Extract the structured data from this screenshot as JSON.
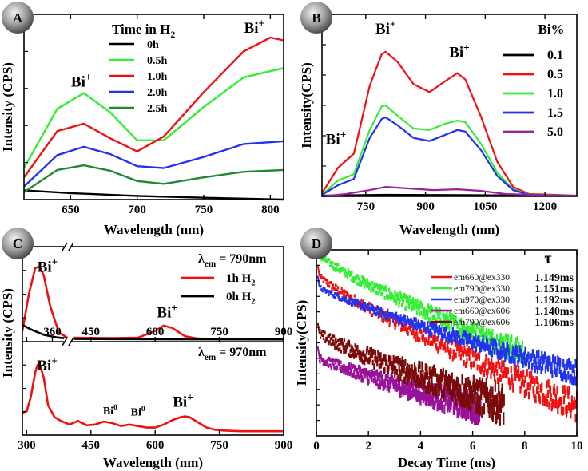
{
  "figure": {
    "panel_count": 4
  },
  "chart_data": [
    {
      "panel": "A",
      "type": "line",
      "xlabel": "Wavelength (nm)",
      "ylabel": "Intensity (CPS)",
      "xlim": [
        615,
        810
      ],
      "ylim": [
        0,
        1.0
      ],
      "xticks": [
        650,
        700,
        750,
        800
      ],
      "show_y_tick_labels": false,
      "legend_title": "Time in H2",
      "legend_position": "top-center",
      "series": [
        {
          "name": "0h",
          "color": "#000000",
          "x": [
            615,
            650,
            700,
            750,
            810
          ],
          "y": [
            0.05,
            0.035,
            0.02,
            0.01,
            0.0
          ]
        },
        {
          "name": "0.5h",
          "color": "#33ee33",
          "x": [
            615,
            640,
            660,
            680,
            700,
            720,
            750,
            780,
            810
          ],
          "y": [
            0.17,
            0.49,
            0.575,
            0.47,
            0.32,
            0.32,
            0.5,
            0.66,
            0.71
          ]
        },
        {
          "name": "1.0h",
          "color": "#ee1111",
          "x": [
            615,
            640,
            660,
            680,
            700,
            720,
            750,
            780,
            800,
            810
          ],
          "y": [
            0.12,
            0.37,
            0.41,
            0.33,
            0.26,
            0.34,
            0.58,
            0.8,
            0.875,
            0.86
          ]
        },
        {
          "name": "2.0h",
          "color": "#2233ee",
          "x": [
            615,
            640,
            660,
            680,
            700,
            720,
            750,
            780,
            810
          ],
          "y": [
            0.07,
            0.24,
            0.285,
            0.245,
            0.18,
            0.17,
            0.23,
            0.3,
            0.315
          ]
        },
        {
          "name": "2.5h",
          "color": "#228833",
          "x": [
            615,
            640,
            660,
            680,
            700,
            720,
            750,
            780,
            810
          ],
          "y": [
            0.04,
            0.16,
            0.185,
            0.155,
            0.1,
            0.085,
            0.12,
            0.15,
            0.16
          ]
        }
      ],
      "annotations": [
        {
          "text": "Bi",
          "sup": "+",
          "x": 658,
          "y": 0.61
        },
        {
          "text": "Bi",
          "sup": "+",
          "x": 788,
          "y": 0.9
        }
      ]
    },
    {
      "panel": "B",
      "type": "line",
      "xlabel": "Wavelength (nm)",
      "ylabel": "Intensity(CPS)",
      "xlim": [
        640,
        1280
      ],
      "ylim": [
        0,
        1.0
      ],
      "xticks": [
        750,
        900,
        1050,
        1200
      ],
      "show_y_tick_labels": false,
      "legend_title": "Bi%",
      "legend_position": "top-right",
      "series": [
        {
          "name": "0.1",
          "color": "#000000",
          "x": [
            640,
            800,
            1000,
            1280
          ],
          "y": [
            0.005,
            0.01,
            0.008,
            0.004
          ]
        },
        {
          "name": "0.5",
          "color": "#ee1111",
          "x": [
            640,
            680,
            720,
            760,
            790,
            800,
            830,
            870,
            910,
            950,
            980,
            1000,
            1040,
            1080,
            1120,
            1160,
            1280
          ],
          "y": [
            0.02,
            0.18,
            0.27,
            0.7,
            0.9,
            0.915,
            0.85,
            0.71,
            0.66,
            0.73,
            0.78,
            0.74,
            0.5,
            0.22,
            0.06,
            0.015,
            0.005
          ]
        },
        {
          "name": "1.0",
          "color": "#33ee33",
          "x": [
            640,
            680,
            720,
            760,
            790,
            800,
            830,
            870,
            910,
            950,
            980,
            1000,
            1040,
            1080,
            1120,
            1160,
            1280
          ],
          "y": [
            0.01,
            0.1,
            0.14,
            0.42,
            0.57,
            0.575,
            0.51,
            0.43,
            0.42,
            0.46,
            0.48,
            0.47,
            0.33,
            0.15,
            0.045,
            0.012,
            0.004
          ]
        },
        {
          "name": "1.5",
          "color": "#2233ee",
          "x": [
            640,
            680,
            720,
            760,
            790,
            800,
            830,
            870,
            910,
            950,
            980,
            1000,
            1040,
            1080,
            1120,
            1160,
            1280
          ],
          "y": [
            0.01,
            0.07,
            0.11,
            0.37,
            0.49,
            0.5,
            0.45,
            0.37,
            0.35,
            0.39,
            0.42,
            0.41,
            0.29,
            0.13,
            0.04,
            0.01,
            0.003
          ]
        },
        {
          "name": "5.0",
          "color": "#992299",
          "x": [
            640,
            700,
            760,
            800,
            860,
            920,
            980,
            1040,
            1100,
            1280
          ],
          "y": [
            0.0,
            0.015,
            0.04,
            0.06,
            0.05,
            0.04,
            0.045,
            0.035,
            0.015,
            0.003
          ]
        }
      ],
      "annotations": [
        {
          "text": "Bi",
          "sup": "+",
          "x": 675,
          "y": 0.3
        },
        {
          "text": "Bi",
          "sup": "+",
          "x": 800,
          "y": 1.0
        },
        {
          "text": "Bi",
          "sup": "+",
          "x": 985,
          "y": 0.85
        }
      ]
    },
    {
      "panel": "C",
      "type": "line",
      "subplots": [
        {
          "position": "top",
          "xlim": [
            290,
            900
          ],
          "ylim": [
            0,
            1.0
          ],
          "axis_break_at": 400,
          "legend_title": "λ",
          "legend_title_sub": "em",
          "legend_title_value": " = 790nm",
          "legend_position": "top-right",
          "series": [
            {
              "name": "1h H",
              "name_sub": "2",
              "color": "#ee1111",
              "x": [
                290,
                305,
                320,
                330,
                340,
                355,
                375,
                395
              ],
              "y": [
                0.12,
                0.6,
                0.95,
                0.97,
                0.85,
                0.45,
                0.1,
                0.03
              ]
            },
            {
              "name": "1h H",
              "name_sub": "2",
              "color": "#ee1111",
              "x": [
                410,
                450,
                500,
                560,
                600,
                620,
                640,
                670,
                700,
                750,
                900
              ],
              "y": [
                0.03,
                0.028,
                0.025,
                0.03,
                0.12,
                0.19,
                0.16,
                0.05,
                0.02,
                0.012,
                0.01
              ]
            },
            {
              "name": "0h H",
              "name_sub": "2",
              "color": "#000000",
              "x": [
                290,
                310,
                340,
                370,
                395
              ],
              "y": [
                0.2,
                0.14,
                0.07,
                0.035,
                0.02
              ]
            },
            {
              "name": "0h H",
              "name_sub": "2",
              "color": "#000000",
              "x": [
                410,
                500,
                600,
                700,
                900
              ],
              "y": [
                0.015,
                0.013,
                0.012,
                0.01,
                0.008
              ]
            }
          ],
          "annotations": [
            {
              "text": "Bi",
              "sup": "+",
              "x": 330,
              "y": 1.05
            },
            {
              "text": "Bi",
              "sup": "+",
              "x": 628,
              "y": 0.3
            }
          ]
        },
        {
          "position": "bottom",
          "xlim": [
            290,
            900
          ],
          "ylim": [
            0,
            1.0
          ],
          "xlabel": "Wavelength (nm)",
          "xticks": [
            300,
            450,
            600,
            750,
            900
          ],
          "label_prefix": "λ",
          "label_sub": "em",
          "label_value": " = 970nm",
          "series": [
            {
              "name": "970nm",
              "color": "#ee1111",
              "x": [
                290,
                300,
                310,
                320,
                325,
                330,
                340,
                350,
                365,
                380,
                400,
                420,
                440,
                460,
                480,
                500,
                520,
                540,
                560,
                580,
                600,
                620,
                640,
                660,
                670,
                680,
                700,
                720,
                740,
                760,
                800,
                850,
                900
              ],
              "y": [
                0.28,
                0.3,
                0.5,
                0.82,
                0.92,
                0.94,
                0.75,
                0.38,
                0.22,
                0.17,
                0.12,
                0.17,
                0.11,
                0.12,
                0.16,
                0.14,
                0.1,
                0.12,
                0.1,
                0.08,
                0.08,
                0.12,
                0.18,
                0.22,
                0.23,
                0.22,
                0.15,
                0.08,
                0.05,
                0.04,
                0.03,
                0.03,
                0.03
              ]
            }
          ],
          "annotations": [
            {
              "text": "Bi",
              "sup": "+",
              "x": 333,
              "y": 1.02
            },
            {
              "text": "Bi",
              "sup": "0",
              "x": 495,
              "y": 0.26
            },
            {
              "text": "Bi",
              "sup": "0",
              "x": 560,
              "y": 0.24
            },
            {
              "text": "Bi",
              "sup": "+",
              "x": 665,
              "y": 0.36
            }
          ]
        }
      ],
      "ylabel": "Intensity (CPS)"
    },
    {
      "panel": "D",
      "type": "scatter",
      "xlabel": "Decay Time (ms)",
      "ylabel": "Intensity(CPS)",
      "xlim": [
        0,
        10
      ],
      "ylim": [
        0,
        1.0
      ],
      "xticks": [
        0,
        2,
        4,
        6,
        8,
        10
      ],
      "show_y_tick_labels": false,
      "legend_title": "τ",
      "legend_position": "top-right",
      "series": [
        {
          "name": "em660@ex330",
          "tau": "1.149ms",
          "color": "#ee1111",
          "t_end": 10.0,
          "y0": 0.86,
          "y1": 0.18,
          "noise": 0.035,
          "tail": 0.2
        },
        {
          "name": "em790@ex330",
          "tau": "1.151ms",
          "color": "#33ee33",
          "t_end": 8.0,
          "y0": 0.97,
          "y1": 0.35,
          "noise": 0.035,
          "tail": 0.35
        },
        {
          "name": "em970@ex330",
          "tau": "1.192ms",
          "color": "#2233ee",
          "t_end": 10.0,
          "y0": 0.8,
          "y1": 0.36,
          "noise": 0.025,
          "tail": 0.32
        },
        {
          "name": "em660@ex606",
          "tau": "1.140ms",
          "color": "#991199",
          "t_end": 6.3,
          "y0": 0.42,
          "y1": 0.05,
          "noise": 0.045,
          "tail": 0.02
        },
        {
          "name": "em790@ex606",
          "tau": "1.106ms",
          "color": "#7a0a0a",
          "t_end": 7.2,
          "y0": 0.55,
          "y1": 0.08,
          "noise": 0.055,
          "tail": 0.05
        }
      ]
    }
  ]
}
